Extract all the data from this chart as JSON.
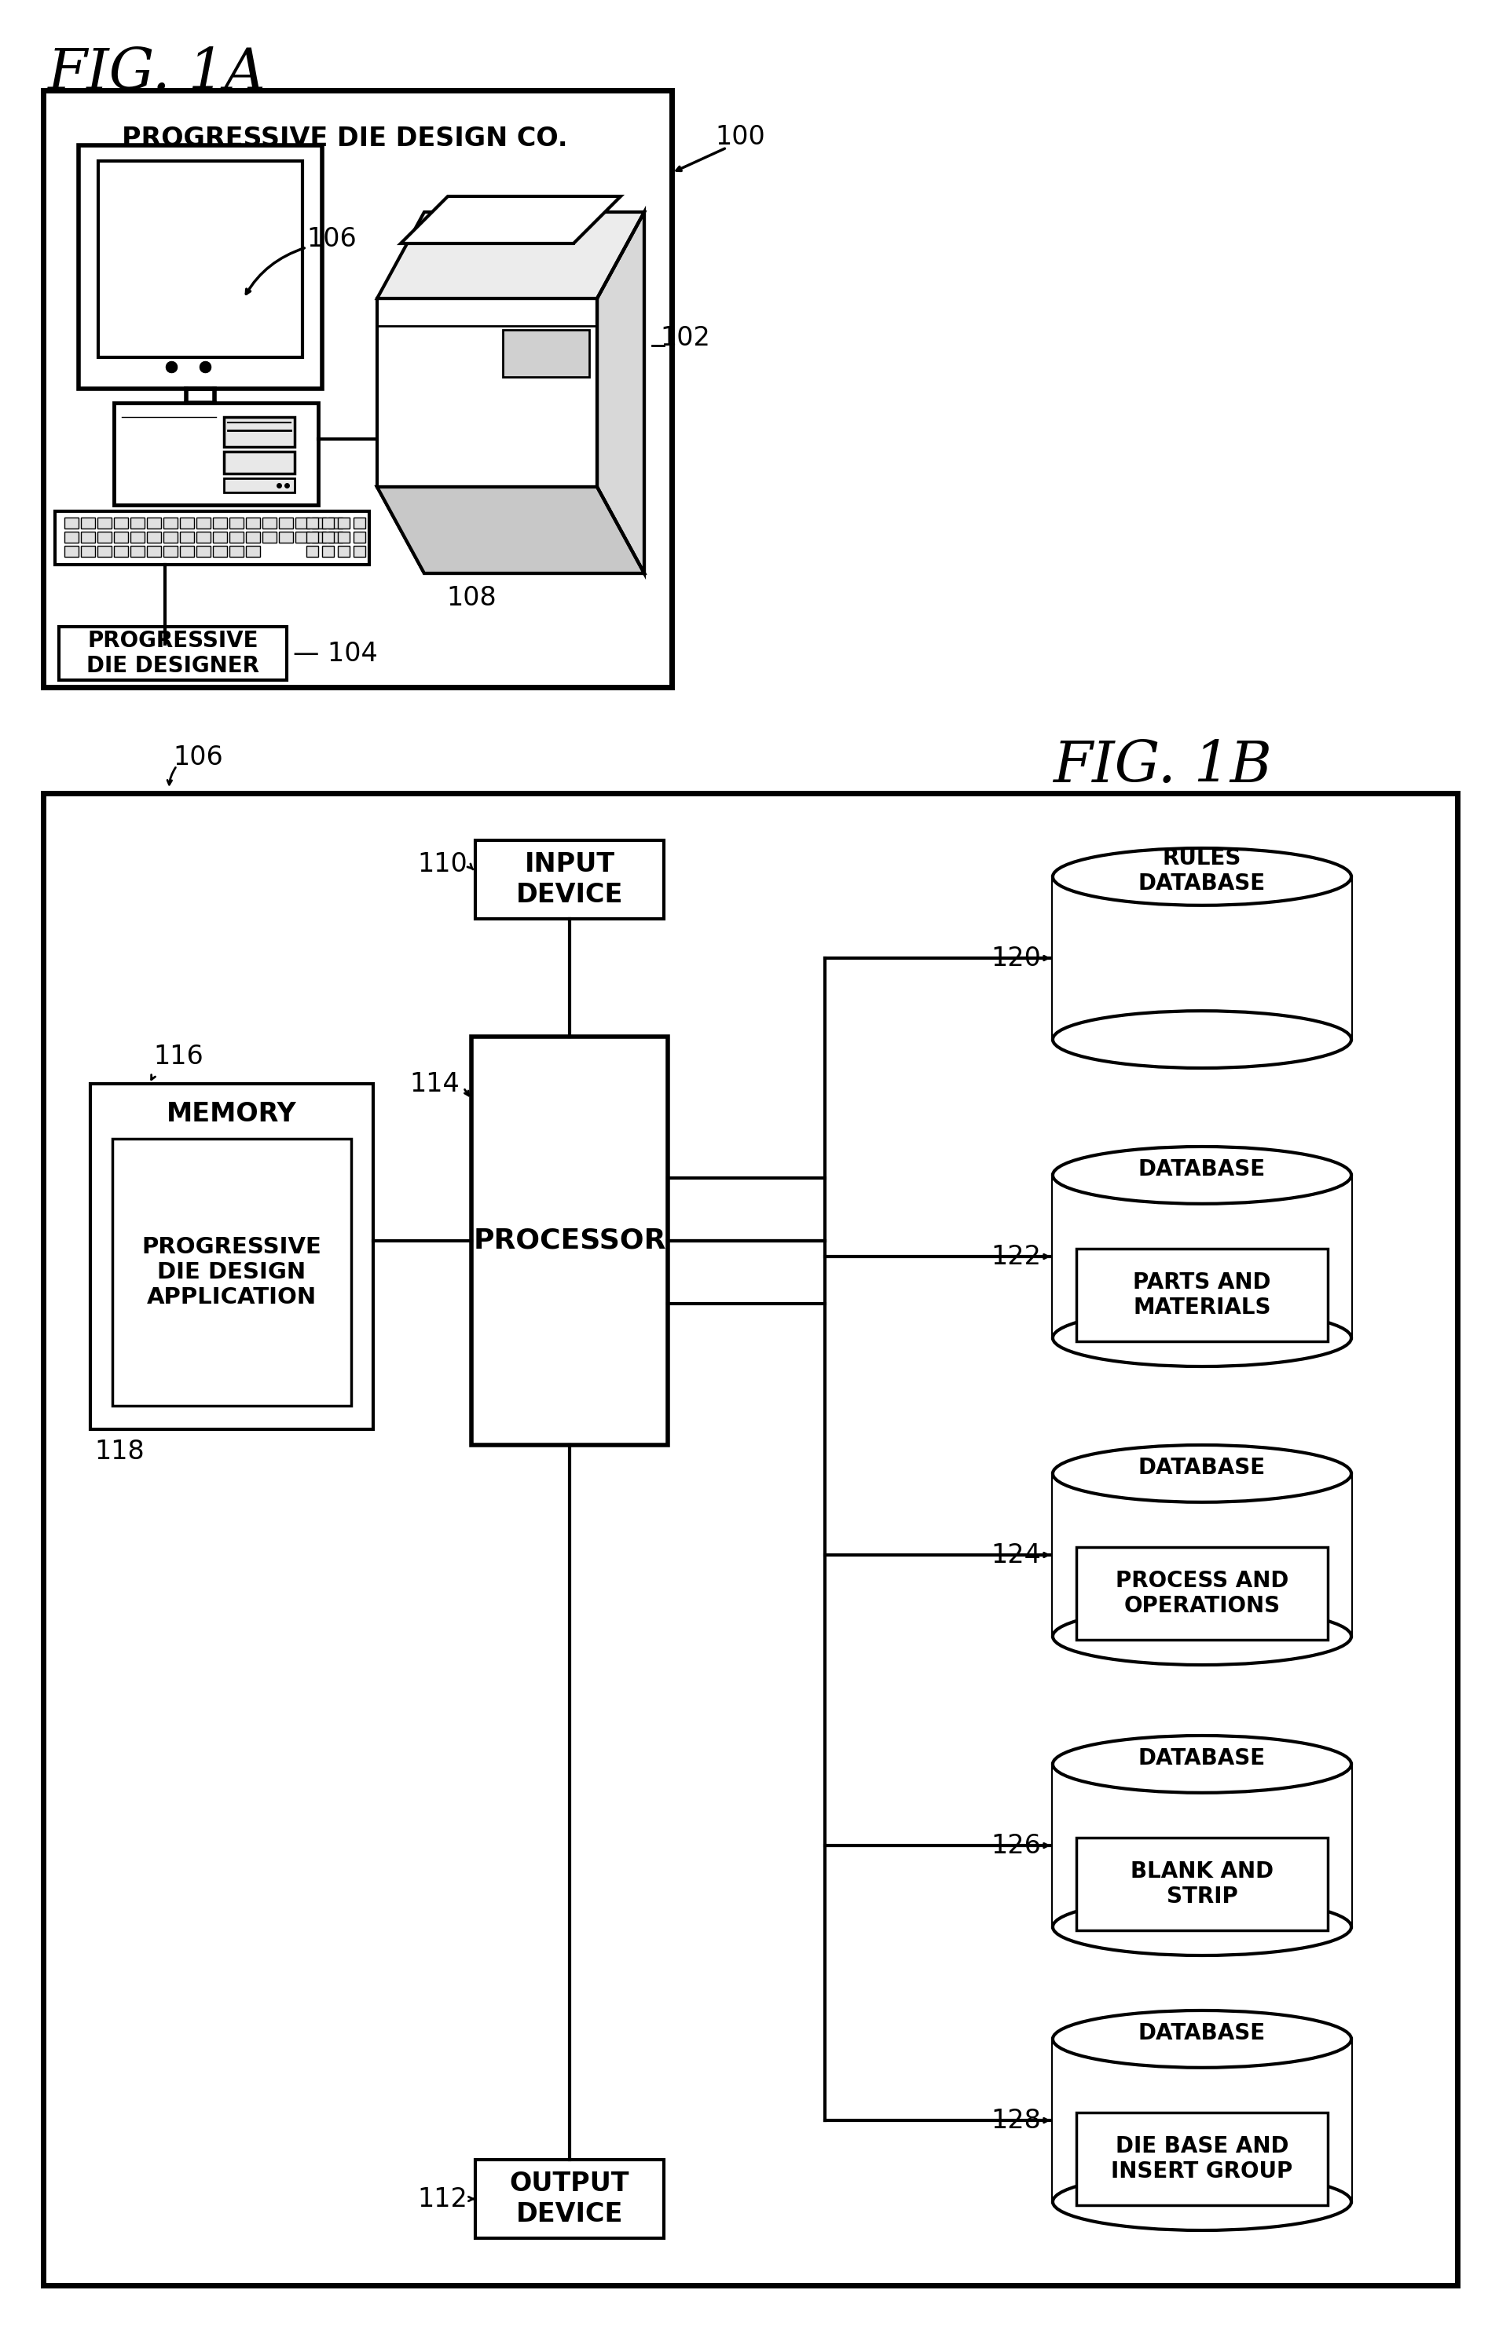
{
  "fig_title_1a": "FIG. 1A",
  "fig_title_1b": "FIG. 1B",
  "bg_color": "#ffffff",
  "fig1a": {
    "company_label": "PROGRESSIVE DIE DESIGN CO.",
    "label_100": "100",
    "label_106": "106",
    "label_104": "104",
    "label_108": "108",
    "label_102": "102",
    "designer_box_label": "PROGRESSIVE\nDIE DESIGNER"
  },
  "fig1b": {
    "label_106": "106",
    "label_110": "110",
    "label_112": "112",
    "label_114": "114",
    "label_116": "116",
    "label_118": "118",
    "label_120": "120",
    "label_122": "122",
    "label_124": "124",
    "label_126": "126",
    "label_128": "128",
    "input_device": "INPUT\nDEVICE",
    "output_device": "OUTPUT\nDEVICE",
    "processor": "PROCESSOR",
    "memory_title": "MEMORY",
    "app_label": "PROGRESSIVE\nDIE DESIGN\nAPPLICATION",
    "db0_top": "RULES\nDATABASE",
    "db_top_label": "DATABASE",
    "db1_inner": "PARTS AND\nMATERIALS",
    "db2_inner": "PROCESS AND\nOPERATIONS",
    "db3_inner": "BLANK AND\nSTRIP",
    "db4_inner": "DIE BASE AND\nINSERT GROUP"
  }
}
